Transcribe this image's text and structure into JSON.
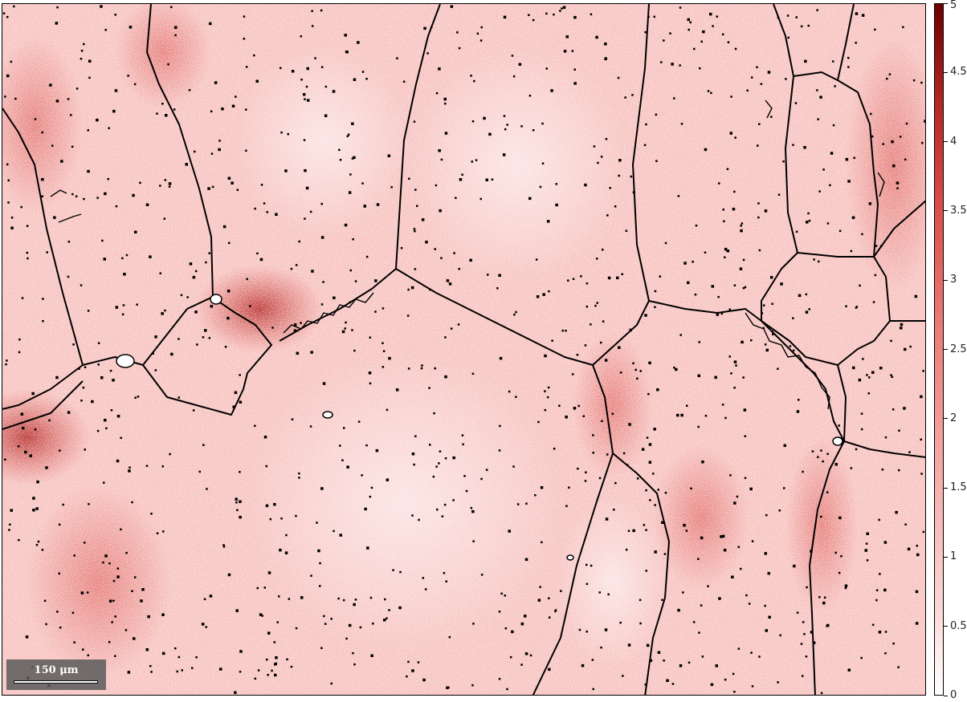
{
  "scalebar": {
    "label": "150 μm"
  },
  "colorbar": {
    "min": 0,
    "max": 5,
    "ticks": [
      "0",
      "0.5",
      "1",
      "1.5",
      "2",
      "2.5",
      "3",
      "3.5",
      "4",
      "4.5",
      "5"
    ],
    "colors": {
      "low": "#ffffff",
      "mid": "#ea7773",
      "high": "#6e0000"
    }
  },
  "map": {
    "background_color": "#f7c3c0",
    "boundary_color": "#000000"
  }
}
